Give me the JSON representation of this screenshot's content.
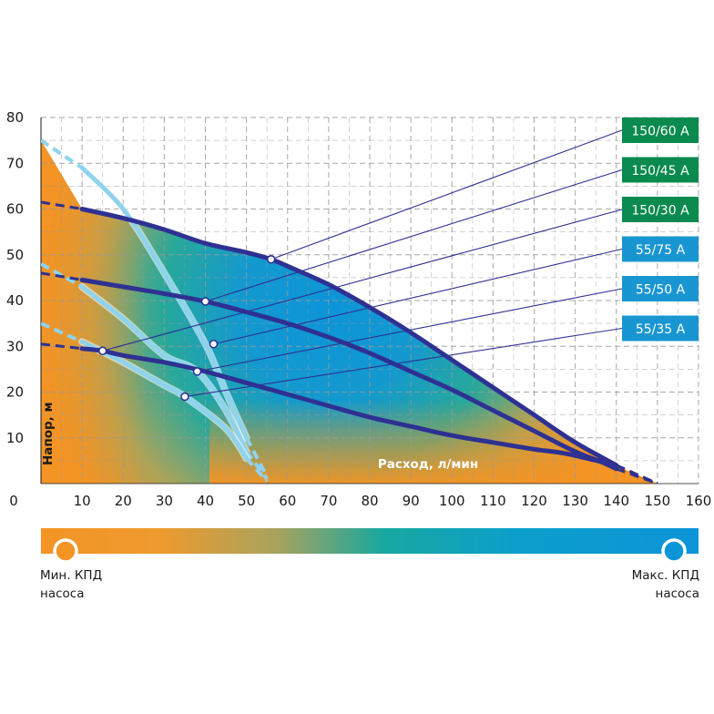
{
  "colors": {
    "min_efficiency": "#F39425",
    "max_efficiency": "#0C94D8",
    "mid_efficiency": "#18A8A0",
    "curve_dark": "#2E3192",
    "curve_light": "#8ED3EE",
    "tag_green": "#0A8A4E",
    "tag_blue": "#1996D2",
    "grid": "#9A9A9A"
  },
  "chart_data": {
    "type": "line",
    "xlabel": "Расход, л/мин",
    "ylabel": "Напор, м",
    "xlim": [
      0,
      160
    ],
    "ylim": [
      0,
      80
    ],
    "xticks": [
      0,
      10,
      20,
      30,
      40,
      50,
      60,
      70,
      80,
      90,
      100,
      110,
      120,
      130,
      140,
      150,
      160
    ],
    "yticks": [
      10,
      20,
      30,
      40,
      50,
      60,
      70,
      80
    ],
    "grid": true,
    "efficiency_scale": {
      "min_label": [
        "Мин. КПД",
        "насоса"
      ],
      "max_label": [
        "Макс. КПД",
        "насоса"
      ]
    },
    "series": [
      {
        "name": "150/60 A",
        "group": "150",
        "tag_color": "green",
        "x": [
          0,
          10,
          20,
          30,
          40,
          50,
          56,
          60,
          70,
          80,
          90,
          100,
          110,
          120,
          130,
          140,
          150
        ],
        "y": [
          61.5,
          60,
          58,
          55.5,
          52.5,
          50.5,
          49,
          47.5,
          43.5,
          38.5,
          33,
          27,
          21,
          15,
          9,
          4,
          0
        ],
        "marker": [
          56,
          49
        ]
      },
      {
        "name": "150/45 A",
        "group": "150",
        "tag_color": "green",
        "x": [
          0,
          10,
          20,
          30,
          40,
          50,
          60,
          70,
          80,
          90,
          100,
          110,
          120,
          130,
          137,
          140,
          150
        ],
        "y": [
          46,
          44.5,
          43,
          41.5,
          39.8,
          37.5,
          35,
          32,
          28.5,
          24.5,
          20.5,
          16,
          11.5,
          7,
          4.5,
          3.2,
          0
        ],
        "marker": [
          40,
          39.8
        ]
      },
      {
        "name": "150/30 A",
        "group": "150",
        "tag_color": "green",
        "x": [
          0,
          10,
          15,
          20,
          30,
          40,
          50,
          60,
          70,
          80,
          90,
          100,
          110,
          120,
          128,
          140,
          150
        ],
        "y": [
          30.5,
          29.5,
          29,
          28,
          26.5,
          24.5,
          22,
          19.5,
          17,
          14.5,
          12.5,
          10.5,
          9,
          7.5,
          6.5,
          4,
          0
        ],
        "marker": [
          15,
          29
        ]
      },
      {
        "name": "55/75 A",
        "group": "55",
        "tag_color": "blue",
        "x": [
          0,
          10,
          20,
          30,
          40,
          45,
          50,
          55
        ],
        "y": [
          75,
          69,
          60,
          46,
          30.5,
          20,
          10,
          1.5
        ],
        "marker": [
          42,
          30.5
        ]
      },
      {
        "name": "55/50 A",
        "group": "55",
        "tag_color": "blue",
        "x": [
          0,
          10,
          20,
          30,
          38,
          45,
          50,
          55
        ],
        "y": [
          48,
          43,
          36,
          28,
          24.5,
          16,
          7,
          1
        ],
        "marker": [
          38,
          24.5
        ]
      },
      {
        "name": "55/35 A",
        "group": "55",
        "tag_color": "blue",
        "x": [
          0,
          10,
          20,
          30,
          35,
          45,
          50,
          55
        ],
        "y": [
          35,
          31,
          26.5,
          21.5,
          19,
          12,
          5.5,
          0.5
        ],
        "marker": [
          35,
          19
        ]
      }
    ]
  }
}
